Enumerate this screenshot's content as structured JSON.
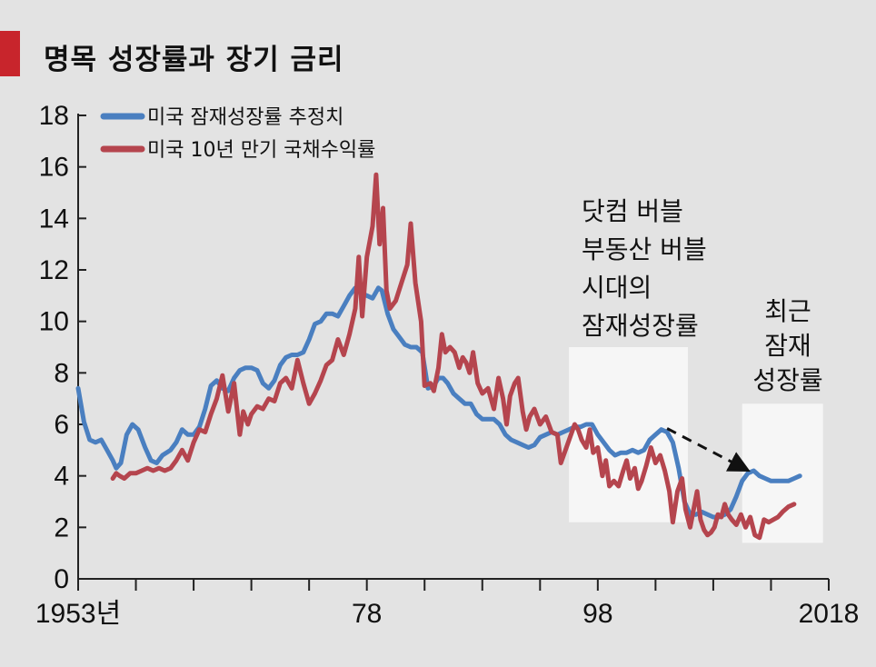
{
  "title": "명목 성장률과 장기 금리",
  "chart_data": {
    "type": "line",
    "title": "명목 성장률과 장기 금리",
    "xlabel": "",
    "ylabel": "",
    "xlim": [
      1953,
      2018
    ],
    "ylim": [
      0,
      18
    ],
    "y_ticks": [
      "0",
      "2",
      "4",
      "6",
      "8",
      "10",
      "12",
      "14",
      "16",
      "18"
    ],
    "x_tick_labels": [
      {
        "x": 1953,
        "label": "1953년"
      },
      {
        "x": 1978,
        "label": "78"
      },
      {
        "x": 1998,
        "label": "98"
      },
      {
        "x": 2018,
        "label": "2018"
      }
    ],
    "x_minor_ticks": [
      1958,
      1963,
      1968,
      1973,
      1983,
      1988,
      1993,
      2003,
      2008,
      2013
    ],
    "grid": false,
    "legend_position": "top-left",
    "series": [
      {
        "name": "미국 잠재성장률 추정치",
        "color": "#4a7fc0",
        "points": [
          [
            1953.0,
            7.4
          ],
          [
            1953.5,
            6.1
          ],
          [
            1954.0,
            5.4
          ],
          [
            1954.5,
            5.3
          ],
          [
            1955.0,
            5.4
          ],
          [
            1955.5,
            5.0
          ],
          [
            1956.0,
            4.6
          ],
          [
            1956.3,
            4.3
          ],
          [
            1956.7,
            4.5
          ],
          [
            1957.2,
            5.6
          ],
          [
            1957.7,
            6.0
          ],
          [
            1958.2,
            5.8
          ],
          [
            1958.8,
            5.1
          ],
          [
            1959.3,
            4.6
          ],
          [
            1959.8,
            4.5
          ],
          [
            1960.3,
            4.8
          ],
          [
            1961.0,
            5.0
          ],
          [
            1961.5,
            5.3
          ],
          [
            1962.0,
            5.8
          ],
          [
            1962.5,
            5.6
          ],
          [
            1963.0,
            5.6
          ],
          [
            1963.5,
            5.9
          ],
          [
            1964.0,
            6.6
          ],
          [
            1964.5,
            7.5
          ],
          [
            1965.0,
            7.7
          ],
          [
            1965.5,
            7.4
          ],
          [
            1966.0,
            7.3
          ],
          [
            1966.5,
            7.8
          ],
          [
            1967.0,
            8.1
          ],
          [
            1967.5,
            8.2
          ],
          [
            1968.0,
            8.2
          ],
          [
            1968.5,
            8.1
          ],
          [
            1969.0,
            7.6
          ],
          [
            1969.5,
            7.4
          ],
          [
            1970.0,
            7.7
          ],
          [
            1970.5,
            8.3
          ],
          [
            1971.0,
            8.6
          ],
          [
            1971.5,
            8.7
          ],
          [
            1972.0,
            8.7
          ],
          [
            1972.5,
            8.8
          ],
          [
            1973.0,
            9.3
          ],
          [
            1973.5,
            9.9
          ],
          [
            1974.0,
            10.0
          ],
          [
            1974.5,
            10.3
          ],
          [
            1975.0,
            10.3
          ],
          [
            1975.5,
            10.2
          ],
          [
            1976.0,
            10.6
          ],
          [
            1976.5,
            11.0
          ],
          [
            1977.0,
            11.3
          ],
          [
            1977.5,
            11.1
          ],
          [
            1978.0,
            11.0
          ],
          [
            1978.5,
            10.9
          ],
          [
            1979.0,
            11.3
          ],
          [
            1979.3,
            11.2
          ],
          [
            1979.8,
            10.3
          ],
          [
            1980.3,
            9.7
          ],
          [
            1980.8,
            9.4
          ],
          [
            1981.3,
            9.1
          ],
          [
            1981.8,
            9.0
          ],
          [
            1982.3,
            9.0
          ],
          [
            1982.8,
            8.8
          ],
          [
            1983.3,
            7.4
          ],
          [
            1983.8,
            7.5
          ],
          [
            1984.2,
            7.8
          ],
          [
            1984.6,
            7.8
          ],
          [
            1985.0,
            7.6
          ],
          [
            1985.5,
            7.2
          ],
          [
            1986.0,
            7.0
          ],
          [
            1986.5,
            6.8
          ],
          [
            1987.0,
            6.8
          ],
          [
            1987.5,
            6.4
          ],
          [
            1988.0,
            6.2
          ],
          [
            1988.5,
            6.2
          ],
          [
            1989.0,
            6.2
          ],
          [
            1989.5,
            6.0
          ],
          [
            1990.0,
            5.6
          ],
          [
            1990.5,
            5.4
          ],
          [
            1991.0,
            5.3
          ],
          [
            1991.5,
            5.2
          ],
          [
            1992.0,
            5.1
          ],
          [
            1992.5,
            5.2
          ],
          [
            1993.0,
            5.5
          ],
          [
            1993.5,
            5.6
          ],
          [
            1994.0,
            5.7
          ],
          [
            1994.5,
            5.6
          ],
          [
            1995.0,
            5.7
          ],
          [
            1995.5,
            5.8
          ],
          [
            1996.0,
            5.9
          ],
          [
            1996.5,
            5.9
          ],
          [
            1997.0,
            6.0
          ],
          [
            1997.5,
            6.0
          ],
          [
            1998.0,
            5.6
          ],
          [
            1998.5,
            5.3
          ],
          [
            1999.0,
            5.0
          ],
          [
            1999.5,
            4.8
          ],
          [
            2000.0,
            4.9
          ],
          [
            2000.5,
            4.9
          ],
          [
            2001.0,
            5.0
          ],
          [
            2001.5,
            4.9
          ],
          [
            2002.0,
            5.0
          ],
          [
            2002.5,
            5.4
          ],
          [
            2003.0,
            5.6
          ],
          [
            2003.5,
            5.8
          ],
          [
            2004.0,
            5.7
          ],
          [
            2004.5,
            5.3
          ],
          [
            2005.0,
            4.3
          ],
          [
            2005.5,
            3.0
          ],
          [
            2006.0,
            2.5
          ],
          [
            2006.5,
            2.5
          ],
          [
            2007.0,
            2.6
          ],
          [
            2007.5,
            2.5
          ],
          [
            2008.0,
            2.4
          ],
          [
            2008.5,
            2.4
          ],
          [
            2009.0,
            2.5
          ],
          [
            2009.5,
            2.7
          ],
          [
            2010.0,
            3.2
          ],
          [
            2010.5,
            3.8
          ],
          [
            2011.0,
            4.1
          ],
          [
            2011.5,
            4.2
          ],
          [
            2012.0,
            4.0
          ],
          [
            2012.5,
            3.9
          ],
          [
            2013.0,
            3.8
          ],
          [
            2013.5,
            3.8
          ],
          [
            2014.0,
            3.8
          ],
          [
            2014.5,
            3.8
          ],
          [
            2015.0,
            3.9
          ],
          [
            2015.5,
            4.0
          ]
        ]
      },
      {
        "name": "미국 10년 만기 국채수익률",
        "color": "#b5454e",
        "points": [
          [
            1956.0,
            3.9
          ],
          [
            1956.3,
            4.1
          ],
          [
            1956.6,
            4.0
          ],
          [
            1957.0,
            3.9
          ],
          [
            1957.5,
            4.1
          ],
          [
            1958.0,
            4.1
          ],
          [
            1958.5,
            4.2
          ],
          [
            1959.0,
            4.3
          ],
          [
            1959.5,
            4.2
          ],
          [
            1960.0,
            4.3
          ],
          [
            1960.5,
            4.2
          ],
          [
            1961.0,
            4.3
          ],
          [
            1961.5,
            4.6
          ],
          [
            1962.0,
            5.0
          ],
          [
            1962.5,
            4.6
          ],
          [
            1963.0,
            5.3
          ],
          [
            1963.5,
            5.8
          ],
          [
            1964.0,
            5.7
          ],
          [
            1964.5,
            6.4
          ],
          [
            1965.0,
            7.0
          ],
          [
            1965.5,
            7.9
          ],
          [
            1966.0,
            6.5
          ],
          [
            1966.5,
            7.6
          ],
          [
            1967.0,
            5.6
          ],
          [
            1967.3,
            6.5
          ],
          [
            1967.7,
            6.0
          ],
          [
            1968.0,
            6.4
          ],
          [
            1968.5,
            6.7
          ],
          [
            1969.0,
            6.6
          ],
          [
            1969.5,
            7.0
          ],
          [
            1970.0,
            6.9
          ],
          [
            1970.5,
            7.6
          ],
          [
            1971.0,
            7.8
          ],
          [
            1971.5,
            7.4
          ],
          [
            1972.0,
            8.5
          ],
          [
            1972.5,
            7.6
          ],
          [
            1973.0,
            6.8
          ],
          [
            1973.5,
            7.2
          ],
          [
            1974.0,
            7.7
          ],
          [
            1974.5,
            8.3
          ],
          [
            1975.0,
            8.5
          ],
          [
            1975.5,
            9.3
          ],
          [
            1976.0,
            8.7
          ],
          [
            1976.5,
            9.5
          ],
          [
            1977.0,
            10.5
          ],
          [
            1977.3,
            12.5
          ],
          [
            1977.6,
            10.2
          ],
          [
            1978.0,
            12.5
          ],
          [
            1978.5,
            13.7
          ],
          [
            1978.8,
            15.7
          ],
          [
            1979.1,
            13.0
          ],
          [
            1979.4,
            14.4
          ],
          [
            1979.7,
            11.2
          ],
          [
            1980.0,
            10.5
          ],
          [
            1980.5,
            10.8
          ],
          [
            1981.0,
            11.5
          ],
          [
            1981.5,
            12.2
          ],
          [
            1981.8,
            13.8
          ],
          [
            1982.2,
            11.5
          ],
          [
            1982.7,
            10.0
          ],
          [
            1983.0,
            7.5
          ],
          [
            1983.5,
            7.6
          ],
          [
            1983.8,
            7.3
          ],
          [
            1984.2,
            8.2
          ],
          [
            1984.5,
            9.5
          ],
          [
            1984.8,
            8.8
          ],
          [
            1985.2,
            9.0
          ],
          [
            1985.6,
            8.8
          ],
          [
            1986.0,
            8.2
          ],
          [
            1986.3,
            8.6
          ],
          [
            1986.6,
            8.4
          ],
          [
            1986.9,
            8.0
          ],
          [
            1987.2,
            8.8
          ],
          [
            1987.6,
            7.6
          ],
          [
            1988.0,
            7.2
          ],
          [
            1988.5,
            7.4
          ],
          [
            1989.0,
            6.6
          ],
          [
            1989.4,
            7.8
          ],
          [
            1989.8,
            7.0
          ],
          [
            1990.1,
            6.0
          ],
          [
            1990.4,
            7.1
          ],
          [
            1990.8,
            7.6
          ],
          [
            1991.1,
            7.8
          ],
          [
            1991.5,
            6.5
          ],
          [
            1991.8,
            5.8
          ],
          [
            1992.1,
            6.3
          ],
          [
            1992.5,
            6.6
          ],
          [
            1993.0,
            6.0
          ],
          [
            1993.5,
            6.3
          ],
          [
            1994.0,
            5.7
          ],
          [
            1994.5,
            5.6
          ],
          [
            1994.8,
            4.5
          ],
          [
            1995.2,
            5.0
          ],
          [
            1995.6,
            5.5
          ],
          [
            1996.0,
            6.0
          ],
          [
            1996.3,
            5.8
          ],
          [
            1996.6,
            5.4
          ],
          [
            1997.0,
            5.1
          ],
          [
            1997.3,
            5.8
          ],
          [
            1997.6,
            4.9
          ],
          [
            1998.0,
            5.1
          ],
          [
            1998.4,
            4.0
          ],
          [
            1998.7,
            4.6
          ],
          [
            1999.0,
            3.6
          ],
          [
            1999.4,
            3.8
          ],
          [
            1999.8,
            3.6
          ],
          [
            2000.2,
            4.2
          ],
          [
            2000.5,
            4.6
          ],
          [
            2000.8,
            3.9
          ],
          [
            2001.2,
            4.3
          ],
          [
            2001.5,
            3.5
          ],
          [
            2001.8,
            3.8
          ],
          [
            2002.2,
            4.4
          ],
          [
            2002.6,
            5.1
          ],
          [
            2003.0,
            4.5
          ],
          [
            2003.4,
            4.8
          ],
          [
            2003.8,
            4.2
          ],
          [
            2004.2,
            3.4
          ],
          [
            2004.5,
            2.2
          ],
          [
            2004.9,
            3.4
          ],
          [
            2005.3,
            3.9
          ],
          [
            2005.6,
            2.7
          ],
          [
            2006.0,
            2.0
          ],
          [
            2006.3,
            2.7
          ],
          [
            2006.6,
            3.4
          ],
          [
            2006.9,
            2.3
          ],
          [
            2007.2,
            1.9
          ],
          [
            2007.5,
            1.7
          ],
          [
            2007.8,
            1.8
          ],
          [
            2008.1,
            2.0
          ],
          [
            2008.4,
            2.5
          ],
          [
            2008.7,
            2.4
          ],
          [
            2009.0,
            2.9
          ],
          [
            2009.3,
            2.5
          ],
          [
            2009.6,
            2.3
          ],
          [
            2010.0,
            2.1
          ],
          [
            2010.4,
            2.5
          ],
          [
            2010.8,
            2.0
          ],
          [
            2011.2,
            2.4
          ],
          [
            2011.6,
            1.7
          ],
          [
            2012.0,
            1.6
          ],
          [
            2012.4,
            2.3
          ],
          [
            2012.8,
            2.2
          ],
          [
            2013.2,
            2.3
          ],
          [
            2013.6,
            2.4
          ],
          [
            2014.0,
            2.6
          ],
          [
            2014.5,
            2.8
          ],
          [
            2015.0,
            2.9
          ]
        ]
      }
    ],
    "highlights": [
      {
        "x_start": 1995.5,
        "x_end": 2005.8,
        "y_start": 2.2,
        "y_end": 9.0,
        "label": "닷컴 버블 부동산 버블 시대의 잠재성장률"
      },
      {
        "x_start": 2010.5,
        "x_end": 2017.5,
        "y_start": 1.4,
        "y_end": 6.8,
        "label": "최근 잠재 성장률"
      }
    ]
  },
  "annotations": {
    "bubble_lines": [
      "닷컴 버블",
      "부동산 버블",
      "시대의",
      "잠재성장률"
    ],
    "recent_lines": [
      "최근",
      "잠재",
      "성장률"
    ]
  }
}
